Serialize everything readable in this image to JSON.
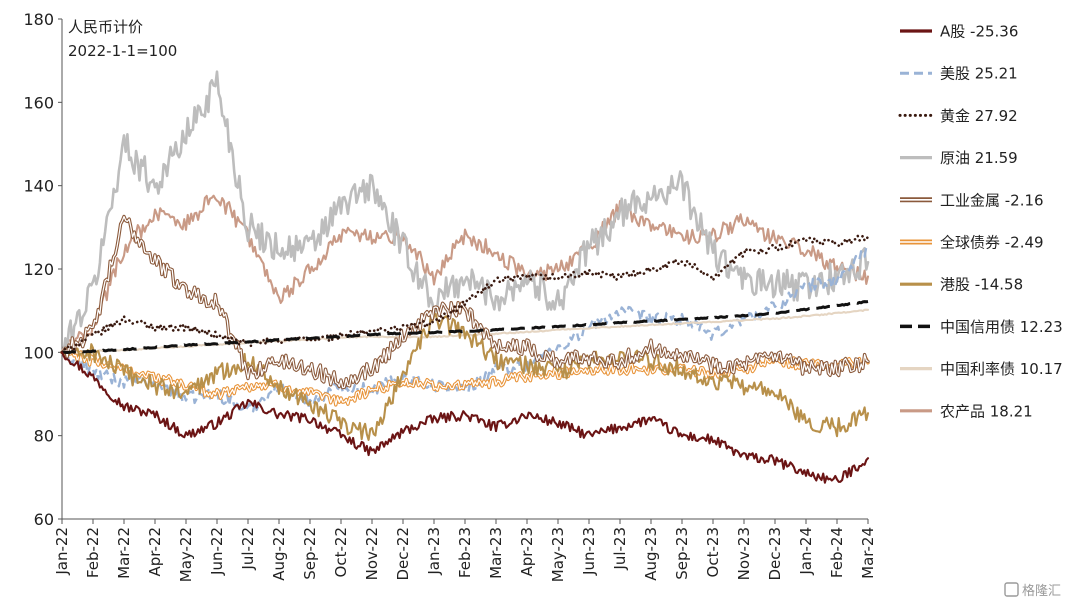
{
  "chart_data": {
    "type": "line",
    "title": "",
    "note_lines": [
      "人民币计价",
      "2022-1-1=100"
    ],
    "xlabel": "",
    "ylabel": "",
    "ylim": [
      60,
      180
    ],
    "yticks": [
      60,
      80,
      100,
      120,
      140,
      160,
      180
    ],
    "x_tick_labels": [
      "Jan-22",
      "Feb-22",
      "Mar-22",
      "Apr-22",
      "May-22",
      "Jun-22",
      "Jul-22",
      "Aug-22",
      "Sep-22",
      "Oct-22",
      "Nov-22",
      "Dec-22",
      "Jan-23",
      "Feb-23",
      "Mar-23",
      "Apr-23",
      "May-23",
      "Jun-23",
      "Jul-23",
      "Aug-23",
      "Sep-23",
      "Oct-23",
      "Nov-23",
      "Dec-23",
      "Jan-24",
      "Feb-24",
      "Mar-24"
    ],
    "x": [
      "2022-01",
      "2022-02",
      "2022-03",
      "2022-04",
      "2022-05",
      "2022-06",
      "2022-07",
      "2022-08",
      "2022-09",
      "2022-10",
      "2022-11",
      "2022-12",
      "2023-01",
      "2023-02",
      "2023-03",
      "2023-04",
      "2023-05",
      "2023-06",
      "2023-07",
      "2023-08",
      "2023-09",
      "2023-10",
      "2023-11",
      "2023-12",
      "2024-01",
      "2024-02",
      "2024-03"
    ],
    "legend_position": "right",
    "grid": false,
    "series": [
      {
        "name": "A股 -25.36",
        "color": "#6b1414",
        "style": "solid",
        "values": [
          100,
          94,
          87,
          85,
          80,
          83,
          88,
          85,
          84,
          80,
          76,
          81,
          84,
          85,
          82,
          85,
          83,
          80,
          82,
          84,
          80,
          79,
          75,
          74,
          71,
          69,
          74.6
        ]
      },
      {
        "name": "美股 25.21",
        "color": "#9ab3d6",
        "style": "dash",
        "values": [
          100,
          95,
          93,
          93,
          89,
          90,
          86,
          92,
          88,
          92,
          91,
          94,
          92,
          91,
          96,
          97,
          101,
          106,
          110,
          108,
          108,
          104,
          108,
          111,
          116,
          117,
          125.2
        ]
      },
      {
        "name": "黄金 27.92",
        "color": "#3a1a10",
        "style": "dot",
        "values": [
          100,
          104,
          108,
          106,
          106,
          104,
          102,
          103,
          103,
          104,
          105,
          106,
          107,
          112,
          117,
          118,
          118,
          119,
          118,
          120,
          122,
          118,
          124,
          125,
          127,
          126,
          127.9
        ]
      },
      {
        "name": "原油 21.59",
        "color": "#bdbdbd",
        "style": "solid",
        "values": [
          100,
          115,
          150,
          140,
          152,
          165,
          130,
          125,
          125,
          135,
          140,
          125,
          112,
          118,
          113,
          118,
          112,
          125,
          133,
          138,
          140,
          124,
          117,
          116,
          116,
          118,
          121.6
        ]
      },
      {
        "name": "工业金属 -2.16",
        "color": "#8b5a3c",
        "style": "double",
        "values": [
          100,
          105,
          132,
          122,
          115,
          112,
          95,
          98,
          96,
          93,
          96,
          104,
          110,
          110,
          102,
          101,
          98,
          99,
          98,
          101,
          100,
          97,
          97,
          99,
          96,
          96,
          97.8
        ]
      },
      {
        "name": "全球债券 -2.49",
        "color": "#e8943a",
        "style": "double",
        "values": [
          100,
          98,
          96,
          94,
          92,
          90,
          92,
          92,
          90,
          88,
          91,
          93,
          92,
          92,
          93,
          94,
          95,
          96,
          96,
          96,
          96,
          95,
          96,
          98,
          97,
          97,
          97.5
        ]
      },
      {
        "name": "港股 -14.58",
        "color": "#b8904a",
        "style": "solid",
        "values": [
          100,
          100,
          95,
          92,
          90,
          95,
          98,
          92,
          88,
          83,
          80,
          95,
          108,
          105,
          98,
          97,
          95,
          98,
          99,
          98,
          96,
          93,
          92,
          90,
          83,
          82,
          85.4
        ]
      },
      {
        "name": "中国信用债 12.23",
        "color": "#111111",
        "style": "longdash",
        "values": [
          100,
          100.3,
          100.7,
          101.2,
          101.7,
          102.1,
          102.5,
          103.0,
          103.4,
          103.8,
          104.3,
          104.6,
          104.8,
          105.1,
          105.4,
          105.8,
          106.2,
          106.6,
          107.1,
          107.5,
          107.9,
          108.3,
          108.8,
          109.4,
          110.3,
          111.2,
          112.2
        ]
      },
      {
        "name": "中国利率债 10.17",
        "color": "#e5d5c2",
        "style": "solid",
        "values": [
          100,
          100.3,
          100.5,
          101.0,
          101.4,
          101.9,
          102.3,
          102.7,
          103.1,
          103.5,
          103.8,
          103.6,
          103.7,
          104.1,
          104.5,
          104.9,
          105.4,
          105.8,
          106.2,
          106.6,
          107.0,
          107.3,
          107.7,
          108.1,
          108.7,
          109.4,
          110.2
        ]
      },
      {
        "name": "农产品 18.21",
        "color": "#c99a86",
        "style": "solid",
        "values": [
          100,
          106,
          125,
          133,
          131,
          138,
          128,
          112,
          120,
          128,
          128,
          128,
          118,
          128,
          124,
          118,
          120,
          125,
          135,
          130,
          128,
          128,
          132,
          127,
          125,
          120,
          118.2
        ]
      }
    ]
  },
  "watermark": "格隆汇"
}
